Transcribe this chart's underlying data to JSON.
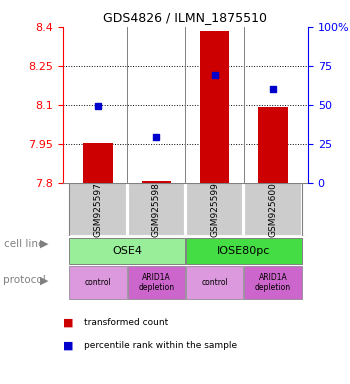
{
  "title": "GDS4826 / ILMN_1875510",
  "samples": [
    "GSM925597",
    "GSM925598",
    "GSM925599",
    "GSM925600"
  ],
  "bar_values": [
    7.953,
    7.807,
    8.385,
    8.092
  ],
  "bar_bottom": 7.8,
  "blue_values": [
    8.095,
    7.975,
    8.215,
    8.16
  ],
  "ylim": [
    7.8,
    8.4
  ],
  "yticks": [
    7.8,
    7.95,
    8.1,
    8.25,
    8.4
  ],
  "ytick_labels": [
    "7.8",
    "7.95",
    "8.1",
    "8.25",
    "8.4"
  ],
  "right_yticks": [
    0,
    25,
    50,
    75,
    100
  ],
  "right_ytick_labels": [
    "0",
    "25",
    "50",
    "75",
    "100%"
  ],
  "hlines": [
    7.95,
    8.1,
    8.25
  ],
  "bar_color": "#cc0000",
  "blue_color": "#0000cc",
  "protocol_colors": [
    "#dd99dd",
    "#cc66cc",
    "#dd99dd",
    "#cc66cc"
  ],
  "protocol_labels": [
    "control",
    "ARID1A\ndepletion",
    "control",
    "ARID1A\ndepletion"
  ],
  "label_cell_line": "cell line",
  "label_protocol": "protocol",
  "legend_red": "transformed count",
  "legend_blue": "percentile rank within the sample",
  "gray_color": "#cccccc",
  "bar_width": 0.5
}
